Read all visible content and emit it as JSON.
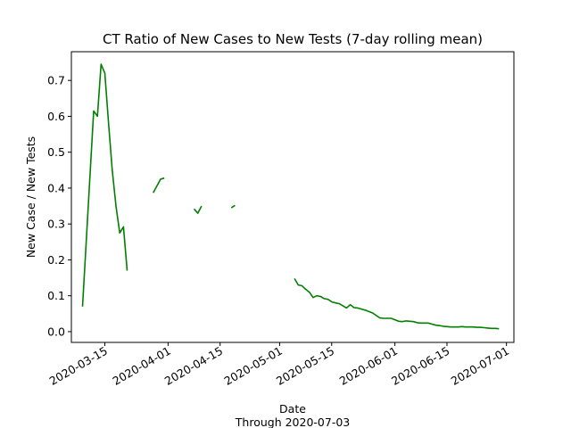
{
  "chart_data": {
    "type": "line",
    "title": "CT Ratio of New Cases to New Tests (7-day rolling mean)",
    "xlabel": "Date",
    "xlabel_sub": "Through 2020-07-03",
    "ylabel": "New Case / New Tests",
    "xlim": [
      "2020-03-06",
      "2020-07-03"
    ],
    "ylim": [
      -0.03,
      0.78
    ],
    "x_ticks": [
      "2020-03-15",
      "2020-04-01",
      "2020-04-15",
      "2020-05-01",
      "2020-05-15",
      "2020-06-01",
      "2020-06-15",
      "2020-07-01"
    ],
    "y_ticks": [
      0.0,
      0.1,
      0.2,
      0.3,
      0.4,
      0.5,
      0.6,
      0.7
    ],
    "y_tick_labels": [
      "0.0",
      "0.1",
      "0.2",
      "0.3",
      "0.4",
      "0.5",
      "0.6",
      "0.7"
    ],
    "grid": false,
    "series_color": "#008000",
    "segments": [
      [
        [
          "2020-03-09",
          0.07
        ],
        [
          "2020-03-12",
          0.615
        ],
        [
          "2020-03-13",
          0.6
        ],
        [
          "2020-03-14",
          0.745
        ],
        [
          "2020-03-15",
          0.72
        ],
        [
          "2020-03-16",
          0.58
        ],
        [
          "2020-03-17",
          0.45
        ],
        [
          "2020-03-18",
          0.35
        ],
        [
          "2020-03-19",
          0.275
        ],
        [
          "2020-03-20",
          0.292
        ],
        [
          "2020-03-21",
          0.17
        ]
      ],
      [
        [
          "2020-03-28",
          0.387
        ],
        [
          "2020-03-30",
          0.425
        ],
        [
          "2020-03-31",
          0.428
        ]
      ],
      [
        [
          "2020-04-08",
          0.342
        ],
        [
          "2020-04-09",
          0.33
        ],
        [
          "2020-04-10",
          0.35
        ]
      ],
      [
        [
          "2020-04-18",
          0.345
        ],
        [
          "2020-04-19",
          0.352
        ]
      ],
      [
        [
          "2020-05-05",
          0.148
        ],
        [
          "2020-05-06",
          0.13
        ],
        [
          "2020-05-07",
          0.128
        ],
        [
          "2020-05-08",
          0.118
        ],
        [
          "2020-05-09",
          0.11
        ],
        [
          "2020-05-10",
          0.095
        ],
        [
          "2020-05-11",
          0.1
        ],
        [
          "2020-05-12",
          0.098
        ],
        [
          "2020-05-13",
          0.092
        ],
        [
          "2020-05-14",
          0.09
        ],
        [
          "2020-05-15",
          0.083
        ],
        [
          "2020-05-16",
          0.08
        ],
        [
          "2020-05-17",
          0.078
        ],
        [
          "2020-05-18",
          0.072
        ],
        [
          "2020-05-19",
          0.066
        ],
        [
          "2020-05-20",
          0.075
        ],
        [
          "2020-05-21",
          0.067
        ],
        [
          "2020-05-22",
          0.066
        ],
        [
          "2020-05-23",
          0.063
        ],
        [
          "2020-05-24",
          0.06
        ],
        [
          "2020-05-25",
          0.056
        ],
        [
          "2020-05-26",
          0.052
        ],
        [
          "2020-05-27",
          0.045
        ],
        [
          "2020-05-28",
          0.038
        ],
        [
          "2020-05-29",
          0.037
        ],
        [
          "2020-05-30",
          0.037
        ],
        [
          "2020-05-31",
          0.037
        ],
        [
          "2020-06-01",
          0.033
        ],
        [
          "2020-06-02",
          0.029
        ],
        [
          "2020-06-03",
          0.028
        ],
        [
          "2020-06-04",
          0.03
        ],
        [
          "2020-06-05",
          0.029
        ],
        [
          "2020-06-06",
          0.028
        ],
        [
          "2020-06-07",
          0.025
        ],
        [
          "2020-06-08",
          0.024
        ],
        [
          "2020-06-09",
          0.024
        ],
        [
          "2020-06-10",
          0.024
        ],
        [
          "2020-06-11",
          0.021
        ],
        [
          "2020-06-12",
          0.018
        ],
        [
          "2020-06-13",
          0.017
        ],
        [
          "2020-06-14",
          0.015
        ],
        [
          "2020-06-15",
          0.014
        ],
        [
          "2020-06-16",
          0.013
        ],
        [
          "2020-06-17",
          0.013
        ],
        [
          "2020-06-18",
          0.013
        ],
        [
          "2020-06-19",
          0.014
        ],
        [
          "2020-06-20",
          0.013
        ],
        [
          "2020-06-21",
          0.013
        ],
        [
          "2020-06-22",
          0.013
        ],
        [
          "2020-06-23",
          0.012
        ],
        [
          "2020-06-24",
          0.012
        ],
        [
          "2020-06-25",
          0.011
        ],
        [
          "2020-06-26",
          0.01
        ],
        [
          "2020-06-27",
          0.009
        ],
        [
          "2020-06-28",
          0.009
        ],
        [
          "2020-06-29",
          0.008
        ]
      ]
    ]
  }
}
